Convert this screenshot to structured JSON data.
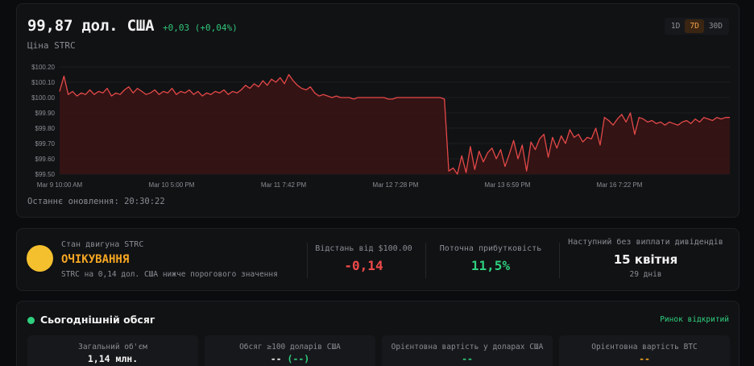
{
  "header": {
    "price": "99,87 дол. США",
    "change": "+0,03 (+0,04%)",
    "subtitle": "Ціна STRC",
    "timeframes": [
      "1D",
      "7D",
      "30D"
    ],
    "active_timeframe": "7D",
    "last_update": "Останнє оновлення: 20:30:22"
  },
  "chart_data": {
    "type": "area",
    "ylim": [
      99.5,
      100.2
    ],
    "yticks": [
      "$100.20",
      "$100.10",
      "$100.00",
      "$99.90",
      "$99.80",
      "$99.70",
      "$99.60",
      "$99.50"
    ],
    "xticks": [
      "Mar 9 10:00 AM",
      "Mar 10 5:00 PM",
      "Mar 11 7:42 PM",
      "Mar 12 7:28 PM",
      "Mar 13 6:59 PM",
      "Mar 16 7:22 PM"
    ],
    "line_color": "#e54848",
    "fill_color": "#3a1414",
    "series": [
      {
        "values": [
          100.04,
          100.14,
          100.02,
          100.04,
          100.01,
          100.03,
          100.02,
          100.05,
          100.02,
          100.04,
          100.03,
          100.06,
          100.01,
          100.03,
          100.02,
          100.05,
          100.07,
          100.03,
          100.06,
          100.04,
          100.02,
          100.03,
          100.05,
          100.02,
          100.04,
          100.03,
          100.06,
          100.02,
          100.04,
          100.03,
          100.05,
          100.02,
          100.04,
          100.01,
          100.03,
          100.02,
          100.04,
          100.03,
          100.05,
          100.02,
          100.04,
          100.03,
          100.05,
          100.08,
          100.06,
          100.09,
          100.07,
          100.11,
          100.08,
          100.12,
          100.1,
          100.13,
          100.09,
          100.15,
          100.11,
          100.08,
          100.06,
          100.05,
          100.07,
          100.03,
          100.01,
          100.02,
          100.01,
          100.0,
          100.01,
          100.0,
          100.0,
          100.0,
          99.99,
          100.0,
          100.0,
          100.0,
          100.0,
          100.0,
          100.0,
          100.0,
          99.99,
          99.99,
          100.0,
          100.0,
          100.0,
          100.0,
          100.0,
          100.0,
          100.0,
          100.0,
          100.0,
          100.0,
          100.0,
          99.99,
          99.52,
          99.54,
          99.5,
          99.62,
          99.51,
          99.68,
          99.53,
          99.65,
          99.58,
          99.64,
          99.67,
          99.6,
          99.66,
          99.55,
          99.63,
          99.72,
          99.6,
          99.69,
          99.52,
          99.71,
          99.66,
          99.73,
          99.76,
          99.61,
          99.74,
          99.67,
          99.75,
          99.7,
          99.79,
          99.74,
          99.76,
          99.71,
          99.74,
          99.73,
          99.8,
          99.69,
          99.87,
          99.85,
          99.82,
          99.86,
          99.89,
          99.84,
          99.9,
          99.76,
          99.87,
          99.86,
          99.84,
          99.85,
          99.83,
          99.84,
          99.82,
          99.84,
          99.83,
          99.82,
          99.84,
          99.85,
          99.83,
          99.86,
          99.84,
          99.87,
          99.86,
          99.85,
          99.87,
          99.86,
          99.87,
          99.87
        ]
      }
    ]
  },
  "engine": {
    "label": "Стан двигуна STRC",
    "state": "ОЧІКУВАННЯ",
    "description": "STRC на 0,14 дол. США нижче порогового значення"
  },
  "metrics": {
    "distance_label": "Відстань від $100.00",
    "distance_value": "-0,14",
    "yield_label": "Поточна прибутковість",
    "yield_value": "11,5%",
    "next_label": "Наступний без виплати дивідендів",
    "next_value": "15 квітня",
    "next_sub": "29 днів"
  },
  "volume": {
    "title": "Сьогоднішній обсяг",
    "status": "Ринок відкритий",
    "boxes": [
      {
        "label": "Загальний об'єм",
        "value": "1,14 млн."
      },
      {
        "label": "Обсяг ≥100 доларів США",
        "value": "-- ",
        "value_extra": "(--)"
      },
      {
        "label": "Орієнтовна вартість у доларах США",
        "value": "--"
      },
      {
        "label": "Орієнтовна вартість BTC",
        "value": "--"
      }
    ]
  }
}
